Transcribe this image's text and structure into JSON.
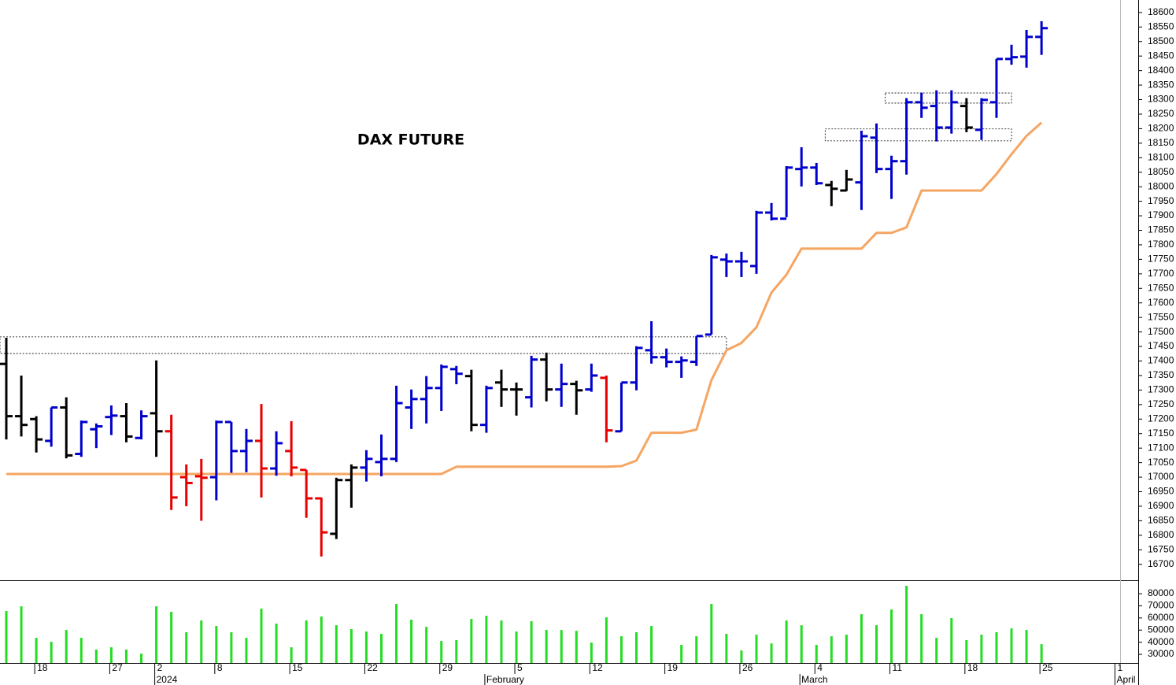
{
  "chart_data": [
    {
      "type": "ohlc",
      "title": "DAX FUTURE",
      "categories": [
        null,
        null,
        "18",
        null,
        null,
        null,
        null,
        "27",
        null,
        null,
        "2",
        null,
        null,
        null,
        "8",
        null,
        null,
        null,
        null,
        "15",
        null,
        null,
        null,
        null,
        "22",
        null,
        null,
        null,
        null,
        "29",
        null,
        null,
        null,
        null,
        "5",
        null,
        null,
        null,
        null,
        "12",
        null,
        null,
        null,
        null,
        "19",
        null,
        null,
        null,
        null,
        "26",
        null,
        null,
        null,
        null,
        "4",
        null,
        null,
        null,
        null,
        "11",
        null,
        null,
        null,
        null,
        "18",
        null,
        null,
        null,
        null,
        "25",
        null,
        null,
        null,
        null,
        "1"
      ],
      "month_labels": [
        null,
        null,
        null,
        null,
        null,
        null,
        null,
        null,
        null,
        null,
        "2024",
        null,
        null,
        null,
        null,
        null,
        null,
        null,
        null,
        null,
        null,
        null,
        null,
        null,
        null,
        null,
        null,
        null,
        null,
        null,
        null,
        null,
        "February",
        null,
        null,
        null,
        null,
        null,
        null,
        null,
        null,
        null,
        null,
        null,
        null,
        null,
        null,
        null,
        null,
        null,
        null,
        null,
        null,
        "March",
        null,
        null,
        null,
        null,
        null,
        null,
        null,
        null,
        null,
        null,
        null,
        null,
        null,
        null,
        null,
        null,
        null,
        null,
        null,
        null,
        "April"
      ],
      "open": [
        17390,
        17210,
        17200,
        17125,
        17240,
        17080,
        17165,
        17207,
        17210,
        17135,
        17220,
        17158,
        17000,
        17003,
        17000,
        17190,
        17090,
        17125,
        17030,
        17090,
        17025,
        16927,
        16805,
        16990,
        17033,
        17052,
        17063,
        17240,
        17269,
        17307,
        17372,
        17348,
        17180,
        17326,
        17302,
        17275,
        17405,
        17302,
        17321,
        17302,
        17342,
        17158,
        17326,
        17437,
        17413,
        17397,
        17397,
        17491,
        17749,
        17743,
        17727,
        17911,
        17890,
        18061,
        18066,
        18006,
        17987,
        18015,
        18169,
        18061,
        18088,
        18291,
        18278,
        18204,
        18278,
        18196,
        18291,
        18440,
        18448,
        18516,
        null,
        null,
        null,
        null,
        null
      ],
      "high": [
        17480,
        17350,
        17210,
        17240,
        17275,
        17195,
        17185,
        17247,
        17255,
        17230,
        17402,
        17215,
        17044,
        17063,
        17195,
        17190,
        17166,
        17252,
        17158,
        17193,
        17025,
        16930,
        16998,
        17044,
        17093,
        17147,
        17315,
        17302,
        17348,
        17388,
        17383,
        17370,
        17315,
        17370,
        17326,
        17418,
        17429,
        17391,
        17332,
        17391,
        17350,
        17326,
        17451,
        17537,
        17443,
        17416,
        17486,
        17765,
        17770,
        17776,
        17917,
        17944,
        18071,
        18136,
        18082,
        18020,
        18058,
        18193,
        18218,
        18107,
        18305,
        18324,
        18332,
        18332,
        18305,
        18305,
        18440,
        18489,
        18540,
        18570,
        null,
        null,
        null,
        null,
        null
      ],
      "low": [
        17130,
        17140,
        17085,
        17105,
        17065,
        17070,
        17100,
        17145,
        17120,
        17130,
        17070,
        16887,
        16900,
        16850,
        16920,
        17015,
        17017,
        16930,
        17005,
        17003,
        16860,
        16727,
        16787,
        16895,
        16985,
        17003,
        17052,
        17166,
        17185,
        17228,
        17320,
        17158,
        17153,
        17242,
        17212,
        17240,
        17261,
        17242,
        17215,
        17294,
        17120,
        17158,
        17299,
        17391,
        17378,
        17342,
        17383,
        17491,
        17689,
        17689,
        17700,
        17884,
        17895,
        18001,
        18006,
        17933,
        17985,
        17920,
        18047,
        17958,
        18042,
        18237,
        18156,
        18183,
        18188,
        18161,
        18237,
        18420,
        18410,
        18454,
        null,
        null,
        null,
        null,
        null
      ],
      "close": [
        17210,
        17180,
        17130,
        17240,
        17075,
        17190,
        17175,
        17212,
        17140,
        17210,
        17158,
        16930,
        16980,
        16998,
        17190,
        17090,
        17125,
        17030,
        17117,
        17033,
        16927,
        16810,
        16990,
        17033,
        17063,
        17063,
        17255,
        17269,
        17307,
        17380,
        17356,
        17180,
        17307,
        17302,
        17302,
        17405,
        17302,
        17321,
        17299,
        17350,
        17161,
        17326,
        17445,
        17413,
        17397,
        17402,
        17486,
        17757,
        17743,
        17743,
        17911,
        17890,
        18066,
        18066,
        18012,
        17993,
        18025,
        18174,
        18061,
        18088,
        18291,
        18272,
        18204,
        18291,
        18204,
        18299,
        18440,
        18446,
        18516,
        18546,
        null,
        null,
        null,
        null,
        null
      ],
      "bar_colors": [
        "#000000",
        "#000000",
        "#000000",
        "#0000cc",
        "#000000",
        "#0000cc",
        "#0000cc",
        "#0000cc",
        "#000000",
        "#0000cc",
        "#000000",
        "#e60000",
        "#e60000",
        "#e60000",
        "#0000cc",
        "#0000cc",
        "#0000cc",
        "#e60000",
        "#0000cc",
        "#e60000",
        "#e60000",
        "#e60000",
        "#000000",
        "#000000",
        "#0000cc",
        "#0000cc",
        "#0000cc",
        "#0000cc",
        "#0000cc",
        "#0000cc",
        "#0000cc",
        "#000000",
        "#0000cc",
        "#000000",
        "#000000",
        "#0000cc",
        "#000000",
        "#0000cc",
        "#000000",
        "#0000cc",
        "#e60000",
        "#0000cc",
        "#0000cc",
        "#0000cc",
        "#0000cc",
        "#0000cc",
        "#0000cc",
        "#0000cc",
        "#0000cc",
        "#0000cc",
        "#0000cc",
        "#0000cc",
        "#0000cc",
        "#0000cc",
        "#0000cc",
        "#000000",
        "#000000",
        "#0000cc",
        "#0000cc",
        "#0000cc",
        "#0000cc",
        "#0000cc",
        "#0000cc",
        "#0000cc",
        "#000000",
        "#0000cc",
        "#0000cc",
        "#0000cc",
        "#0000cc",
        "#0000cc",
        null,
        null,
        null,
        null,
        null
      ],
      "line": {
        "color": "#f6a562",
        "values": [
          17011,
          17011,
          17011,
          17011,
          17011,
          17011,
          17011,
          17011,
          17011,
          17011,
          17011,
          17011,
          17011,
          17011,
          17011,
          17011,
          17011,
          17011,
          17011,
          17011,
          17011,
          17011,
          17011,
          17011,
          17011,
          17011,
          17011,
          17011,
          17011,
          17011,
          17036,
          17036,
          17036,
          17036,
          17036,
          17036,
          17036,
          17036,
          17036,
          17036,
          17036,
          17038,
          17057,
          17153,
          17153,
          17153,
          17164,
          17334,
          17437,
          17462,
          17516,
          17636,
          17697,
          17787,
          17787,
          17787,
          17787,
          17787,
          17841,
          17841,
          17860,
          17987,
          17987,
          17987,
          17987,
          17987,
          18044,
          18112,
          18175,
          18221,
          null,
          null,
          null,
          null,
          null
        ]
      },
      "zones": [
        {
          "low": 17426,
          "high": 17483,
          "start": 0,
          "end": 48
        },
        {
          "low": 18288,
          "high": 18323,
          "start": 59,
          "end": 67
        },
        {
          "low": 18158,
          "high": 18199,
          "start": 55,
          "end": 67
        }
      ],
      "ylim": [
        16645,
        18643
      ],
      "yticks": [
        16700,
        16750,
        16800,
        16850,
        16900,
        16950,
        17000,
        17050,
        17100,
        17150,
        17200,
        17250,
        17300,
        17350,
        17400,
        17450,
        17500,
        17550,
        17600,
        17650,
        17700,
        17750,
        17800,
        17850,
        17900,
        17950,
        18000,
        18050,
        18100,
        18150,
        18200,
        18250,
        18300,
        18350,
        18400,
        18450,
        18500,
        18550,
        18600
      ]
    },
    {
      "type": "bar",
      "color": "#22dd22",
      "values": [
        65700,
        69600,
        43600,
        40400,
        50100,
        43600,
        33900,
        35800,
        33900,
        30600,
        69600,
        65100,
        48200,
        57900,
        53400,
        48200,
        43600,
        67700,
        55300,
        35800,
        57900,
        61200,
        54000,
        50800,
        48800,
        46900,
        71600,
        58600,
        52700,
        41000,
        41700,
        59200,
        61800,
        57900,
        48800,
        57300,
        50100,
        50100,
        49400,
        39700,
        60500,
        44900,
        48200,
        53400,
        null,
        37800,
        44900,
        71600,
        46900,
        33200,
        46200,
        39000,
        57900,
        54000,
        37800,
        44900,
        46200,
        63100,
        54000,
        67000,
        86500,
        63100,
        43600,
        59900,
        41700,
        46200,
        48200,
        51400,
        50100,
        38400,
        null,
        null,
        null,
        null,
        null
      ],
      "ylim": [
        22900,
        89100
      ],
      "yticks": [
        30000,
        40000,
        50000,
        60000,
        70000,
        80000
      ]
    }
  ]
}
